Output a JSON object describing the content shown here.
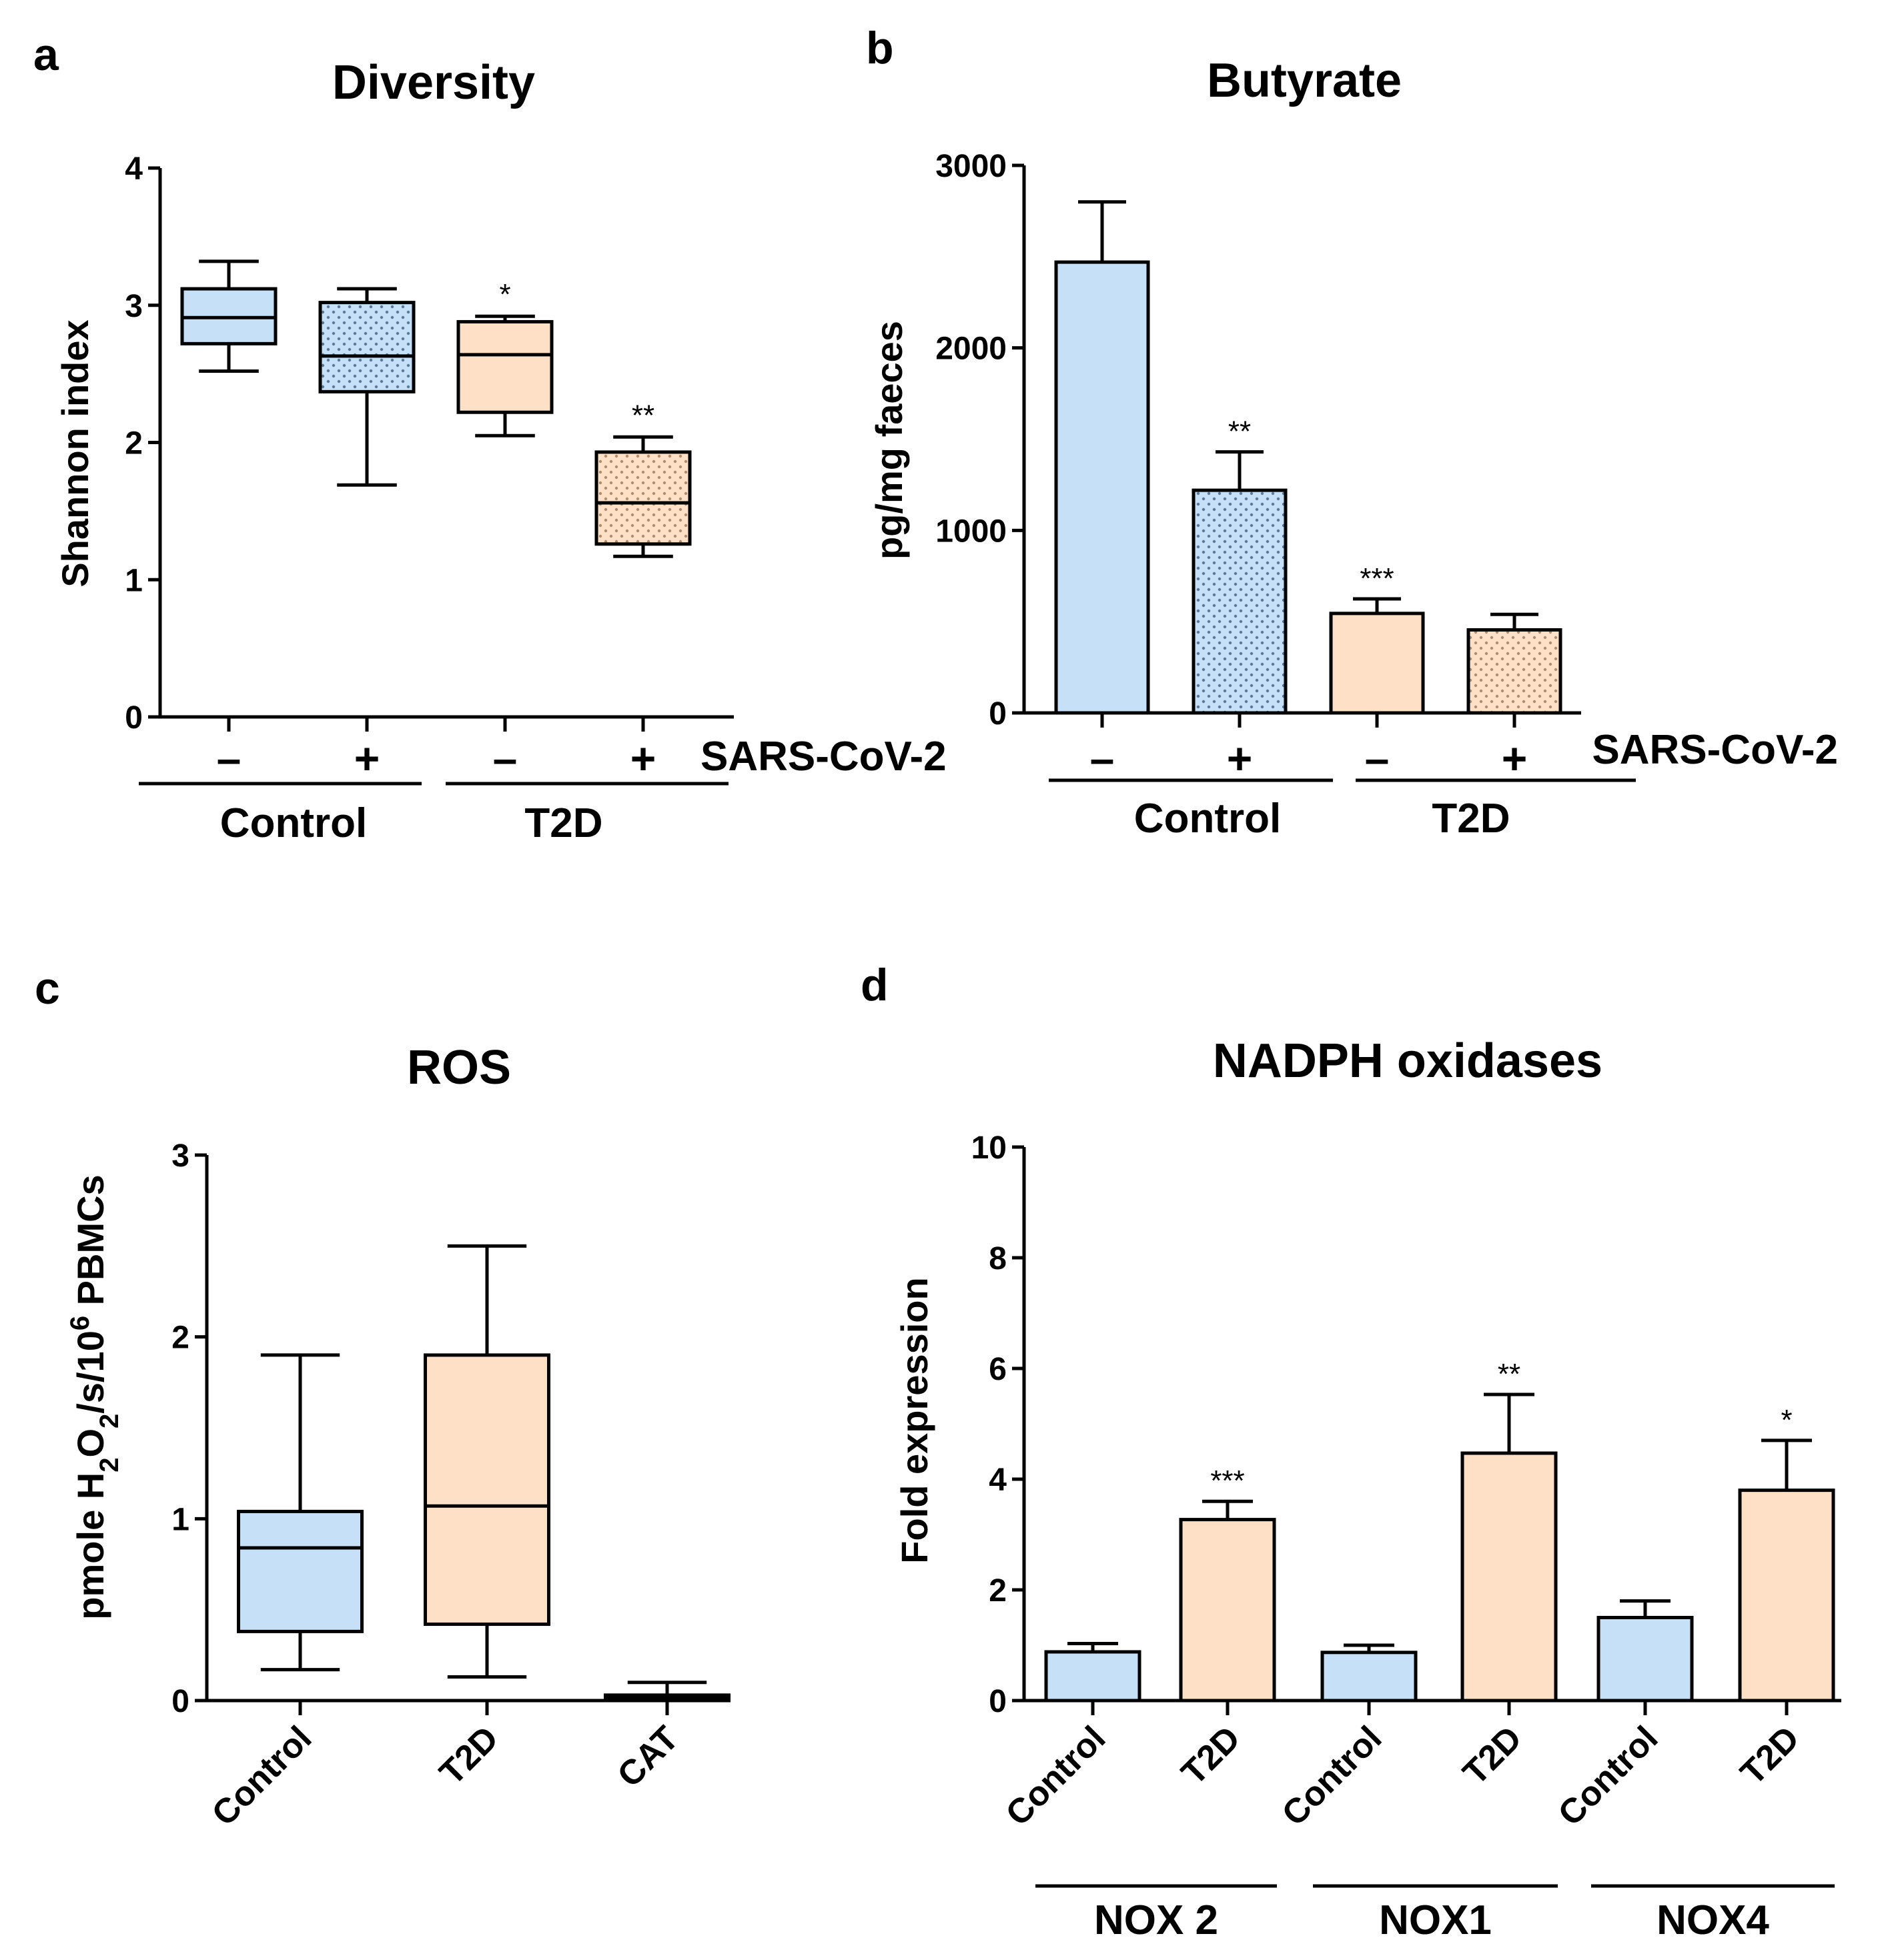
{
  "colors": {
    "control": "#c5e0f7",
    "t2d": "#fde0c5",
    "stroke": "#000000"
  },
  "chart_data": [
    {
      "panel": "a",
      "type": "box",
      "title": "Diversity",
      "ylabel": "Shannon index",
      "ylim": [
        0,
        4
      ],
      "yticks": [
        "0",
        "1",
        "2",
        "3",
        "4"
      ],
      "infection_label": "SARS-CoV-2",
      "groups": [
        {
          "label": "Control",
          "signs": [
            "–",
            "+"
          ]
        },
        {
          "label": "T2D",
          "signs": [
            "–",
            "+"
          ]
        }
      ],
      "boxes": [
        {
          "group": "Control",
          "sars": "–",
          "min": 2.52,
          "q1": 2.72,
          "median": 2.91,
          "q3": 3.12,
          "max": 3.32,
          "dotted": false,
          "sig": ""
        },
        {
          "group": "Control",
          "sars": "+",
          "min": 1.69,
          "q1": 2.37,
          "median": 2.63,
          "q3": 3.02,
          "max": 3.12,
          "dotted": true,
          "sig": ""
        },
        {
          "group": "T2D",
          "sars": "–",
          "min": 2.05,
          "q1": 2.22,
          "median": 2.64,
          "q3": 2.88,
          "max": 2.92,
          "dotted": false,
          "sig": "*"
        },
        {
          "group": "T2D",
          "sars": "+",
          "min": 1.17,
          "q1": 1.26,
          "median": 1.56,
          "q3": 1.93,
          "max": 2.04,
          "dotted": true,
          "sig": "**"
        }
      ]
    },
    {
      "panel": "b",
      "type": "bar",
      "title": "Butyrate",
      "ylabel": "pg/mg faeces",
      "ylim": [
        0,
        3000
      ],
      "yticks": [
        "0",
        "1000",
        "2000",
        "3000"
      ],
      "infection_label": "SARS-CoV-2",
      "groups": [
        {
          "label": "Control",
          "signs": [
            "–",
            "+"
          ]
        },
        {
          "label": "T2D",
          "signs": [
            "–",
            "+"
          ]
        }
      ],
      "bars": [
        {
          "group": "Control",
          "sars": "–",
          "value": 2470,
          "err_top": 2800,
          "dotted": false,
          "sig": ""
        },
        {
          "group": "Control",
          "sars": "+",
          "value": 1220,
          "err_top": 1430,
          "dotted": true,
          "sig": "**"
        },
        {
          "group": "T2D",
          "sars": "–",
          "value": 545,
          "err_top": 625,
          "dotted": false,
          "sig": "***"
        },
        {
          "group": "T2D",
          "sars": "+",
          "value": 455,
          "err_top": 540,
          "dotted": true,
          "sig": ""
        }
      ]
    },
    {
      "panel": "c",
      "type": "box",
      "title": "ROS",
      "ylabel_parts": {
        "a": "pmole H",
        "sub": "2",
        "b": "O",
        "sub2": "2",
        "c": "/s/10",
        "sup": "6",
        "d": " PBMCs"
      },
      "ylim": [
        0,
        3
      ],
      "yticks": [
        "0",
        "1",
        "2",
        "3"
      ],
      "categories": [
        "Control",
        "T2D",
        "CAT"
      ],
      "boxes": [
        {
          "category": "Control",
          "min": 0.17,
          "q1": 0.38,
          "median": 0.84,
          "q3": 1.04,
          "max": 1.9
        },
        {
          "category": "T2D",
          "min": 0.13,
          "q1": 0.42,
          "median": 1.07,
          "q3": 1.9,
          "max": 2.5
        },
        {
          "category": "CAT",
          "min": 0.0,
          "q1": 0.01,
          "median": 0.02,
          "q3": 0.03,
          "max": 0.1
        }
      ]
    },
    {
      "panel": "d",
      "type": "bar",
      "title": "NADPH oxidases",
      "ylabel": "Fold expression",
      "ylim": [
        0,
        10
      ],
      "yticks": [
        "0",
        "2",
        "4",
        "6",
        "8",
        "10"
      ],
      "categories": [
        "Control",
        "T2D",
        "Control",
        "T2D",
        "Control",
        "T2D"
      ],
      "groups": [
        {
          "label": "NOX 2"
        },
        {
          "label": "NOX1"
        },
        {
          "label": "NOX4"
        }
      ],
      "bars": [
        {
          "group": "NOX 2",
          "category": "Control",
          "value": 0.88,
          "err_top": 1.03,
          "sig": ""
        },
        {
          "group": "NOX 2",
          "category": "T2D",
          "value": 3.27,
          "err_top": 3.6,
          "sig": "***"
        },
        {
          "group": "NOX1",
          "category": "Control",
          "value": 0.87,
          "err_top": 1.0,
          "sig": ""
        },
        {
          "group": "NOX1",
          "category": "T2D",
          "value": 4.47,
          "err_top": 5.53,
          "sig": "**"
        },
        {
          "group": "NOX4",
          "category": "Control",
          "value": 1.5,
          "err_top": 1.8,
          "sig": ""
        },
        {
          "group": "NOX4",
          "category": "T2D",
          "value": 3.8,
          "err_top": 4.7,
          "sig": "*"
        }
      ]
    }
  ]
}
